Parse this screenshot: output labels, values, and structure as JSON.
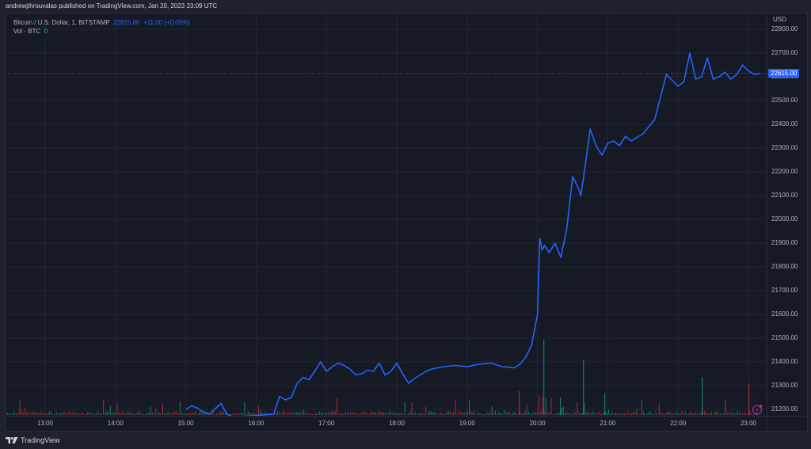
{
  "header": {
    "published": "andrewjthrouvalas published on TradingView.com, Jan 20, 2023 23:09 UTC"
  },
  "legend": {
    "symbol": "Bitcoin / U.S. Dollar, 1, BITSTAMP",
    "last_price": "22615.00",
    "change": "+11.00 (+0.05%)",
    "vol_label": "Vol · BTC",
    "vol_value": "0"
  },
  "price_axis": {
    "currency": "USD",
    "current_price_tag": "22615.00",
    "labels": [
      "22800.00",
      "22700.00",
      "22600.00",
      "22500.00",
      "22400.00",
      "22300.00",
      "22200.00",
      "22100.00",
      "22000.00",
      "21900.00",
      "21800.00",
      "21700.00",
      "21600.00",
      "21500.00",
      "21400.00",
      "21300.00",
      "21200.00"
    ]
  },
  "time_axis": {
    "labels": [
      "13:00",
      "14:00",
      "15:00",
      "16:00",
      "17:00",
      "18:00",
      "19:00",
      "20:00",
      "21:00",
      "22:00",
      "23:00"
    ]
  },
  "footer": {
    "brand": "TradingView"
  },
  "colors": {
    "line": "#2962ff",
    "background": "#161a25",
    "grid": "#232733",
    "volume_up": "#22ab94",
    "volume_down": "#f23645",
    "alert_icon": "#9c27b0"
  },
  "chart_data": {
    "type": "line",
    "title": "Bitcoin / U.S. Dollar, 1, BITSTAMP",
    "xlabel": "",
    "ylabel": "USD",
    "ylim": [
      21170,
      22830
    ],
    "grid": true,
    "legend_position": "top-left",
    "x": [
      "15:00",
      "15:05",
      "15:10",
      "15:15",
      "15:20",
      "15:30",
      "15:35",
      "15:40",
      "15:45",
      "16:15",
      "16:20",
      "16:25",
      "16:30",
      "16:35",
      "16:40",
      "16:45",
      "16:50",
      "16:55",
      "17:00",
      "17:05",
      "17:10",
      "17:15",
      "17:20",
      "17:25",
      "17:30",
      "17:35",
      "17:40",
      "17:45",
      "17:50",
      "17:55",
      "18:00",
      "18:05",
      "18:10",
      "18:15",
      "18:20",
      "18:25",
      "18:30",
      "18:40",
      "18:50",
      "19:00",
      "19:10",
      "19:20",
      "19:30",
      "19:40",
      "19:45",
      "19:50",
      "19:55",
      "20:00",
      "20:02",
      "20:04",
      "20:06",
      "20:10",
      "20:15",
      "20:20",
      "20:25",
      "20:30",
      "20:35",
      "20:37",
      "20:40",
      "20:45",
      "20:50",
      "20:55",
      "21:00",
      "21:05",
      "21:10",
      "21:15",
      "21:20",
      "21:30",
      "21:40",
      "21:50",
      "22:00",
      "22:05",
      "22:10",
      "22:15",
      "22:20",
      "22:25",
      "22:30",
      "22:35",
      "22:40",
      "22:45",
      "22:50",
      "22:55",
      "23:00",
      "23:05",
      "23:10"
    ],
    "series": [
      {
        "name": "BTCUSD close",
        "values": [
          21200,
          21215,
          21205,
          21190,
          21180,
          21225,
          21180,
          21170,
          21170,
          21180,
          21255,
          21240,
          21250,
          21310,
          21335,
          21325,
          21360,
          21400,
          21360,
          21380,
          21395,
          21385,
          21370,
          21345,
          21350,
          21365,
          21360,
          21395,
          21345,
          21360,
          21395,
          21350,
          21310,
          21330,
          21345,
          21360,
          21370,
          21380,
          21385,
          21380,
          21390,
          21395,
          21380,
          21375,
          21390,
          21420,
          21470,
          21600,
          21920,
          21870,
          21890,
          21860,
          21900,
          21840,
          21960,
          22180,
          22130,
          22100,
          22200,
          22380,
          22310,
          22270,
          22320,
          22330,
          22310,
          22350,
          22330,
          22360,
          22420,
          22610,
          22560,
          22580,
          22700,
          22590,
          22600,
          22680,
          22590,
          22600,
          22620,
          22590,
          22610,
          22650,
          22625,
          22610,
          22615
        ]
      }
    ],
    "current_price": 22615.0,
    "change": 11.0,
    "change_pct": 0.05,
    "volume_label": "Vol · BTC",
    "annotations": [
      "Last price tag 22615.00 on price axis"
    ]
  }
}
